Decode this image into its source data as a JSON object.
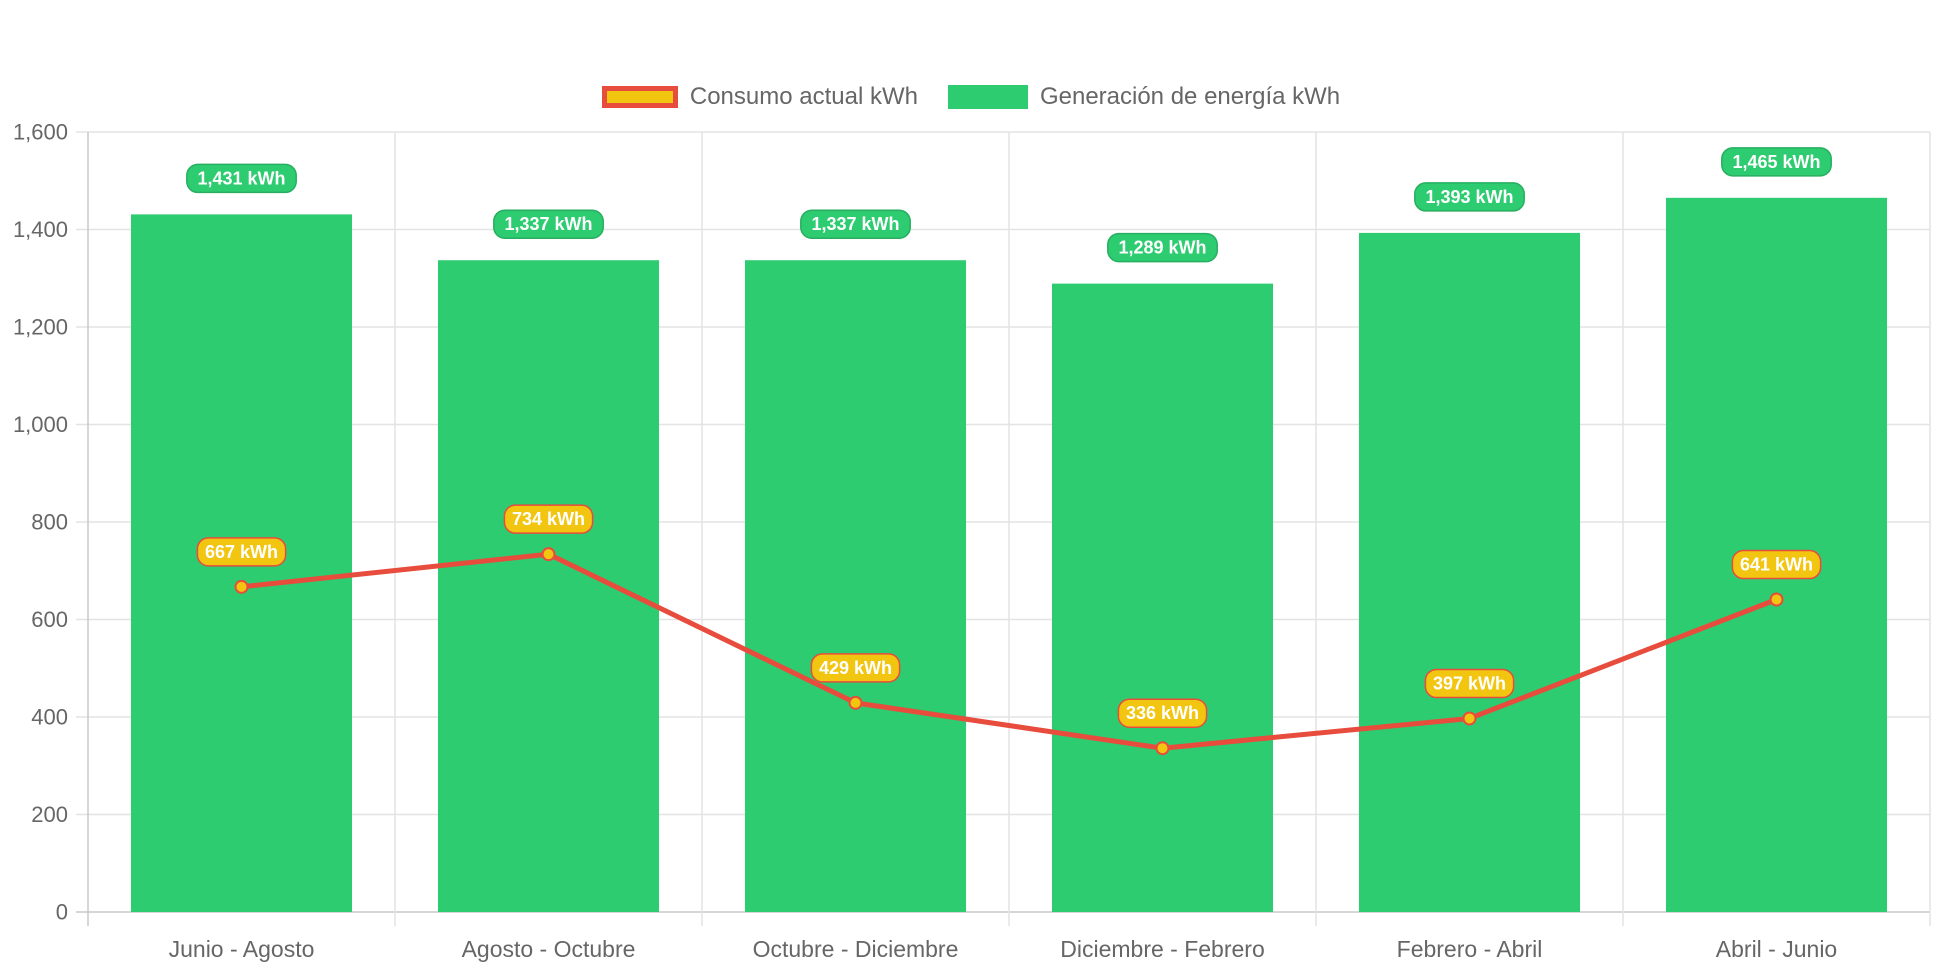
{
  "chart_data": {
    "type": "bar",
    "categories": [
      "Junio - Agosto",
      "Agosto - Octubre",
      "Octubre - Diciembre",
      "Diciembre - Febrero",
      "Febrero - Abril",
      "Abril - Junio"
    ],
    "series": [
      {
        "name": "Generación de energía kWh",
        "type": "bar",
        "color": "#2ecc71",
        "values": [
          1431,
          1337,
          1337,
          1289,
          1393,
          1465
        ],
        "labels": [
          "1,431 kWh",
          "1,337 kWh",
          "1,337 kWh",
          "1,289 kWh",
          "1,393 kWh",
          "1,465 kWh"
        ]
      },
      {
        "name": "Consumo actual kWh",
        "type": "line",
        "color": "#e74c3c",
        "fill_color": "#f2c511",
        "values": [
          667,
          734,
          429,
          336,
          397,
          641
        ],
        "labels": [
          "667 kWh",
          "734 kWh",
          "429 kWh",
          "336 kWh",
          "397 kWh",
          "641 kWh"
        ]
      }
    ],
    "ylim": [
      0,
      1600
    ],
    "yticks": [
      0,
      200,
      400,
      600,
      800,
      1000,
      1200,
      1400,
      1600
    ],
    "ytick_labels": [
      "0",
      "200",
      "400",
      "600",
      "800",
      "1,000",
      "1,200",
      "1,400",
      "1,600"
    ],
    "grid": true,
    "legend_position": "top-center",
    "title": "",
    "xlabel": "",
    "ylabel": ""
  }
}
